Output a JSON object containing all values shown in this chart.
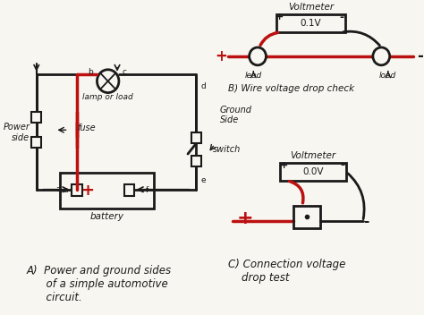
{
  "bg_color": "#ffffff",
  "paper_color": "#f8f6f0",
  "line_color": "#1a1a1a",
  "red_color": "#bb1111",
  "title_A": "A)  Power and ground sides\n      of a simple automotive\n      circuit.",
  "title_B": "B) Wire voltage drop check",
  "title_C": "C) Connection voltage\n    drop test",
  "voltmeter_B": "0.1V",
  "voltmeter_C": "0.0V",
  "label_voltmeter": "Voltmeter",
  "label_battery": "battery",
  "label_lamp": "lamp or load",
  "label_fuse": "fuse",
  "label_switch": "switch",
  "label_power_side": "Power\nside",
  "label_ground_side": "Ground\nSide",
  "label_lead_left": "lead",
  "label_lead_right": "load",
  "font_size_main": 7.5,
  "font_size_label": 7,
  "font_size_small": 6.5,
  "font_size_title": 8.5
}
